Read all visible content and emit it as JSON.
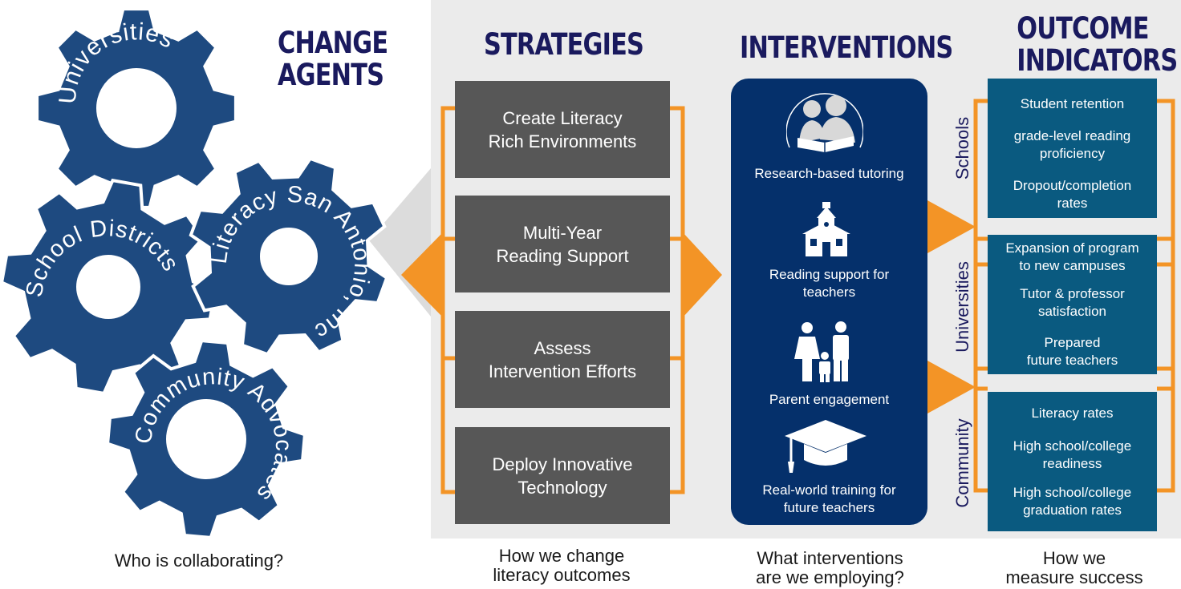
{
  "headings": {
    "change_agents": [
      "CHANGE",
      "AGENTS"
    ],
    "strategies": "STRATEGIES",
    "interventions": "INTERVENTIONS",
    "outcome_indicators": [
      "OUTCOME",
      "INDICATORS"
    ]
  },
  "gears": [
    {
      "label": "Universities"
    },
    {
      "label": "School Districts"
    },
    {
      "label": "Literacy San Antonio, Inc."
    },
    {
      "label": "Community Advocates"
    }
  ],
  "strategies": [
    {
      "lines": [
        "Create Literacy",
        "Rich Environments"
      ]
    },
    {
      "lines": [
        "Multi-Year",
        "Reading Support"
      ]
    },
    {
      "lines": [
        "Assess",
        "Intervention Efforts"
      ]
    },
    {
      "lines": [
        "Deploy Innovative",
        "Technology"
      ]
    }
  ],
  "interventions": [
    {
      "icon": "tutoring-icon",
      "lines": [
        "Research-based tutoring"
      ]
    },
    {
      "icon": "schoolhouse-icon",
      "lines": [
        "Reading support for",
        "teachers"
      ]
    },
    {
      "icon": "family-icon",
      "lines": [
        "Parent engagement"
      ]
    },
    {
      "icon": "graduation-cap-icon",
      "lines": [
        "Real-world training for",
        "future teachers"
      ]
    }
  ],
  "outcomes": [
    {
      "group": "Schools",
      "items": [
        [
          "Student retention"
        ],
        [
          "grade-level reading",
          "proficiency"
        ],
        [
          "Dropout/completion",
          "rates"
        ]
      ]
    },
    {
      "group": "Universities",
      "items": [
        [
          "Expansion of program",
          "to new campuses"
        ],
        [
          "Tutor & professor",
          "satisfaction"
        ],
        [
          "Prepared",
          "future teachers"
        ]
      ]
    },
    {
      "group": "Community",
      "items": [
        [
          "Literacy rates"
        ],
        [
          "High school/college",
          "readiness"
        ],
        [
          "High school/college",
          "graduation rates"
        ]
      ]
    }
  ],
  "captions": {
    "agents": [
      "Who is collaborating?"
    ],
    "strategies": [
      "How we change",
      "literacy outcomes"
    ],
    "interventions": [
      "What interventions",
      "are we employing?"
    ],
    "outcomes": [
      "How we",
      "measure success"
    ]
  },
  "colors": {
    "gear": "#1e4a80",
    "orange": "#f39426",
    "navy_text": "#1a1a5e",
    "strategy_box": "#575757",
    "intervention_panel": "#05306b",
    "outcome_box": "#0a5a80",
    "panel_bg": "#ebebeb"
  }
}
